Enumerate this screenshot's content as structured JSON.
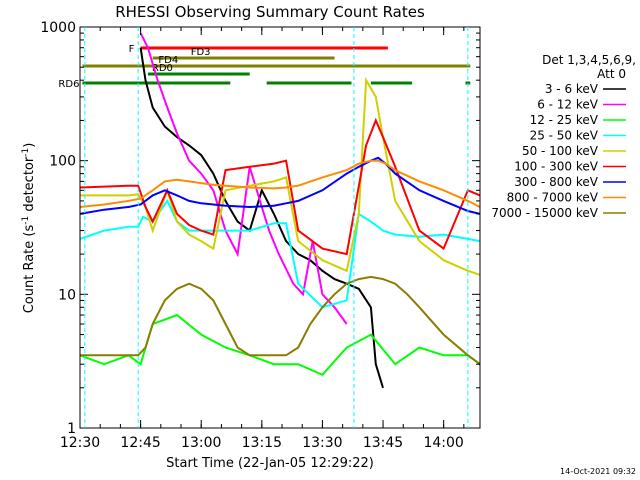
{
  "chart_data": {
    "type": "line",
    "title": "RHESSI Observing Summary Count Rates",
    "xlabel": "Start Time (22-Jan-05 12:29:22)",
    "ylabel": "Count Rate (s⁻¹ detector⁻¹)",
    "ylabel_main": "Count Rate (s",
    "ylabel_sup1": "-1",
    "ylabel_mid": " detector",
    "ylabel_sup2": "-1",
    "ylabel_end": ")",
    "y_scale": "log",
    "ylim": [
      1,
      1000
    ],
    "xlim_minutes": [
      12.5,
      14.15
    ],
    "x_ticks": [
      "12:30",
      "12:45",
      "13:00",
      "13:15",
      "13:30",
      "13:45",
      "14:00"
    ],
    "y_ticks": [
      "1",
      "10",
      "100",
      "1000"
    ],
    "timestamp": "14-Oct-2021 09:32",
    "legend": {
      "placement": "right",
      "header": [
        "Det 1,3,4,5,6,9,",
        "Att 0"
      ],
      "entries": [
        {
          "label": "3 - 6 keV",
          "color": "#000000"
        },
        {
          "label": "6 - 12 keV",
          "color": "#ff00ff"
        },
        {
          "label": "12 - 25 keV",
          "color": "#00ff00"
        },
        {
          "label": "25 - 50 keV",
          "color": "#00ffff"
        },
        {
          "label": "50 - 100 keV",
          "color": "#d0d000"
        },
        {
          "label": "100 - 300 keV",
          "color": "#ff0000"
        },
        {
          "label": "300 - 800 keV",
          "color": "#0000ff"
        },
        {
          "label": "800 - 7000 keV",
          "color": "#ff8c00"
        },
        {
          "label": "7000 - 15000 keV",
          "color": "#8b7d00"
        }
      ]
    },
    "flag_bars": [
      {
        "label": "F",
        "color": "#ff0000",
        "segments": [
          [
            12.75,
            13.77
          ]
        ]
      },
      {
        "label": "FD3",
        "color": "#808000",
        "segments": [
          [
            12.8,
            13.55
          ]
        ]
      },
      {
        "label": "FD4",
        "color": "#808000",
        "segments": [
          [
            12.51,
            14.11
          ]
        ]
      },
      {
        "label": "RD0",
        "color": "#008000",
        "segments": [
          [
            12.78,
            13.2
          ]
        ]
      },
      {
        "label": "RD6",
        "color": "#008000",
        "segments": [
          [
            12.51,
            13.12
          ],
          [
            13.27,
            13.62
          ],
          [
            13.7,
            13.87
          ],
          [
            14.09,
            14.11
          ]
        ]
      }
    ],
    "series": [
      {
        "name": "3 - 6 keV",
        "color": "#000000",
        "x": [
          12.5,
          12.7,
          12.74,
          12.75,
          12.77,
          12.8,
          12.85,
          12.9,
          12.95,
          13.0,
          13.05,
          13.1,
          13.15,
          13.2,
          13.25,
          13.3,
          13.35,
          13.4,
          13.45,
          13.5,
          13.55,
          13.6,
          13.65,
          13.7,
          13.72,
          13.75
        ],
        "y": [
          null,
          null,
          null,
          700,
          400,
          250,
          180,
          150,
          130,
          110,
          80,
          50,
          35,
          30,
          60,
          40,
          25,
          20,
          18,
          15,
          13,
          12,
          11,
          8,
          3,
          2
        ]
      },
      {
        "name": "6 - 12 keV",
        "color": "#ff00ff",
        "x": [
          12.5,
          12.7,
          12.74,
          12.75,
          12.78,
          12.82,
          12.86,
          12.9,
          12.95,
          13.0,
          13.05,
          13.1,
          13.15,
          13.2,
          13.25,
          13.28,
          13.32,
          13.38,
          13.42,
          13.46,
          13.5,
          13.55,
          13.6
        ],
        "y": [
          null,
          null,
          null,
          900,
          700,
          400,
          250,
          160,
          100,
          80,
          60,
          30,
          20,
          90,
          45,
          30,
          20,
          12,
          10,
          25,
          10,
          8,
          6
        ]
      },
      {
        "name": "12 - 25 keV",
        "color": "#00ff00",
        "x": [
          12.5,
          12.6,
          12.7,
          12.75,
          12.8,
          12.9,
          13.0,
          13.1,
          13.2,
          13.3,
          13.4,
          13.5,
          13.6,
          13.7,
          13.8,
          13.9,
          14.0,
          14.1,
          14.15
        ],
        "y": [
          3.5,
          3.0,
          3.5,
          3.0,
          6,
          7,
          5,
          4,
          3.5,
          3,
          3,
          2.5,
          4,
          5,
          3,
          4,
          3.5,
          3.5,
          3
        ]
      },
      {
        "name": "25 - 50 keV",
        "color": "#00ffff",
        "x": [
          12.5,
          12.6,
          12.7,
          12.74,
          12.76,
          12.8,
          12.86,
          12.9,
          12.95,
          13.0,
          13.1,
          13.2,
          13.3,
          13.35,
          13.4,
          13.5,
          13.6,
          13.65,
          13.7,
          13.75,
          13.8,
          13.9,
          14.0,
          14.1,
          14.15
        ],
        "y": [
          26,
          30,
          32,
          32,
          38,
          35,
          50,
          35,
          30,
          30,
          30,
          30,
          34,
          34,
          12,
          8,
          9,
          40,
          35,
          30,
          28,
          27,
          28,
          26,
          25
        ]
      },
      {
        "name": "50 - 100 keV",
        "color": "#d0d000",
        "x": [
          12.5,
          12.6,
          12.7,
          12.74,
          12.77,
          12.8,
          12.86,
          12.9,
          12.95,
          13.0,
          13.05,
          13.1,
          13.2,
          13.3,
          13.35,
          13.4,
          13.5,
          13.6,
          13.65,
          13.68,
          13.72,
          13.75,
          13.8,
          13.9,
          14.0,
          14.1,
          14.15
        ],
        "y": [
          55,
          55,
          55,
          56,
          45,
          30,
          60,
          35,
          28,
          25,
          22,
          60,
          65,
          70,
          75,
          25,
          18,
          15,
          40,
          400,
          300,
          150,
          50,
          25,
          18,
          15,
          14
        ]
      },
      {
        "name": "100 - 300 keV",
        "color": "#ff0000",
        "x": [
          12.5,
          12.6,
          12.7,
          12.74,
          12.77,
          12.8,
          12.86,
          12.9,
          12.95,
          13.0,
          13.05,
          13.1,
          13.2,
          13.3,
          13.35,
          13.4,
          13.5,
          13.6,
          13.68,
          13.72,
          13.75,
          13.8,
          13.9,
          14.0,
          14.1,
          14.15
        ],
        "y": [
          63,
          64,
          65,
          65,
          45,
          35,
          60,
          40,
          33,
          30,
          28,
          85,
          90,
          95,
          100,
          30,
          22,
          20,
          130,
          200,
          150,
          90,
          30,
          22,
          60,
          55
        ]
      },
      {
        "name": "300 - 800 keV",
        "color": "#0000ff",
        "x": [
          12.5,
          12.6,
          12.7,
          12.75,
          12.8,
          12.85,
          12.9,
          12.95,
          13.0,
          13.05,
          13.1,
          13.2,
          13.3,
          13.35,
          13.4,
          13.5,
          13.6,
          13.65,
          13.7,
          13.73,
          13.76,
          13.8,
          13.9,
          14.0,
          14.1,
          14.15
        ],
        "y": [
          40,
          43,
          45,
          47,
          55,
          60,
          55,
          50,
          48,
          47,
          46,
          45,
          46,
          48,
          50,
          60,
          80,
          90,
          100,
          105,
          95,
          80,
          60,
          50,
          42,
          40
        ]
      },
      {
        "name": "800 - 7000 keV",
        "color": "#ff8c00",
        "x": [
          12.5,
          12.6,
          12.7,
          12.75,
          12.8,
          12.85,
          12.9,
          12.95,
          13.0,
          13.05,
          13.1,
          13.2,
          13.3,
          13.35,
          13.4,
          13.5,
          13.6,
          13.65,
          13.7,
          13.73,
          13.76,
          13.8,
          13.9,
          14.0,
          14.1,
          14.15
        ],
        "y": [
          45,
          47,
          50,
          52,
          60,
          70,
          72,
          70,
          68,
          66,
          65,
          63,
          62,
          63,
          65,
          75,
          85,
          95,
          100,
          100,
          95,
          85,
          70,
          60,
          50,
          45
        ]
      },
      {
        "name": "7000 - 15000 keV",
        "color": "#8b7d00",
        "x": [
          12.5,
          12.6,
          12.7,
          12.74,
          12.77,
          12.8,
          12.85,
          12.9,
          12.95,
          13.0,
          13.05,
          13.1,
          13.15,
          13.2,
          13.25,
          13.3,
          13.35,
          13.4,
          13.45,
          13.5,
          13.55,
          13.6,
          13.65,
          13.7,
          13.75,
          13.8,
          13.85,
          13.9,
          14.0,
          14.1,
          14.15
        ],
        "y": [
          3.5,
          3.5,
          3.5,
          3.5,
          4,
          6,
          9,
          11,
          12,
          11,
          9,
          6,
          4,
          3.5,
          3.5,
          3.5,
          3.5,
          4,
          6,
          8,
          10,
          12,
          13,
          13.5,
          13,
          12,
          10,
          8,
          5,
          3.5,
          3
        ]
      }
    ]
  }
}
